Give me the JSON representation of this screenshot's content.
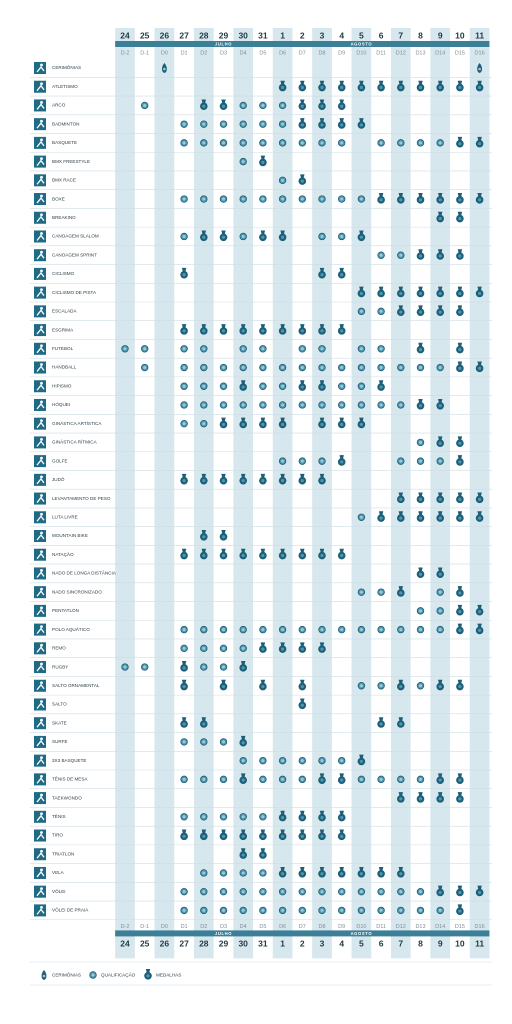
{
  "header": {
    "dates": [
      "24",
      "25",
      "26",
      "27",
      "28",
      "29",
      "30",
      "31",
      "1",
      "2",
      "3",
      "4",
      "5",
      "6",
      "7",
      "8",
      "9",
      "10",
      "11"
    ],
    "codes": [
      "D-2",
      "D-1",
      "D0",
      "D1",
      "D2",
      "D3",
      "D4",
      "D5",
      "D6",
      "D7",
      "D8",
      "D9",
      "D10",
      "D11",
      "D12",
      "D13",
      "D14",
      "D15",
      "D16"
    ],
    "months": [
      "JULHO",
      "AGOSTO"
    ]
  },
  "sports": [
    {
      "name": "CERIMÔNIAS",
      "cells": [
        null,
        null,
        "C",
        null,
        null,
        null,
        null,
        null,
        null,
        null,
        null,
        null,
        null,
        null,
        null,
        null,
        null,
        null,
        "C"
      ]
    },
    {
      "name": "ATLETISMO",
      "cells": [
        null,
        null,
        null,
        null,
        null,
        null,
        null,
        null,
        "M",
        "M",
        "M",
        "M",
        "M",
        "M",
        "M",
        "M",
        "M",
        "M",
        "M"
      ]
    },
    {
      "name": "ARCO",
      "cells": [
        null,
        "Q",
        null,
        null,
        "M",
        "M",
        "Q",
        "Q",
        "Q",
        "M",
        "M",
        "M",
        null,
        null,
        null,
        null,
        null,
        null,
        null
      ]
    },
    {
      "name": "BADMINTON",
      "cells": [
        null,
        null,
        null,
        "Q",
        "Q",
        "Q",
        "Q",
        "Q",
        "Q",
        "M",
        "M",
        "M",
        "M",
        null,
        null,
        null,
        null,
        null,
        null
      ]
    },
    {
      "name": "BASQUETE",
      "cells": [
        null,
        null,
        null,
        "Q",
        "Q",
        "Q",
        "Q",
        "Q",
        "Q",
        "Q",
        "Q",
        "Q",
        null,
        "Q",
        "Q",
        "Q",
        "Q",
        "M",
        "M"
      ]
    },
    {
      "name": "BMX FREESTYLE",
      "cells": [
        null,
        null,
        null,
        null,
        null,
        null,
        "Q",
        "M",
        null,
        null,
        null,
        null,
        null,
        null,
        null,
        null,
        null,
        null,
        null
      ]
    },
    {
      "name": "BMX RACE",
      "cells": [
        null,
        null,
        null,
        null,
        null,
        null,
        null,
        null,
        "Q",
        "M",
        null,
        null,
        null,
        null,
        null,
        null,
        null,
        null,
        null
      ]
    },
    {
      "name": "BOXE",
      "cells": [
        null,
        null,
        null,
        "Q",
        "Q",
        "Q",
        "Q",
        "Q",
        "Q",
        "Q",
        "Q",
        "Q",
        "Q",
        "M",
        "M",
        "M",
        "M",
        "M",
        "M"
      ]
    },
    {
      "name": "BREAKING",
      "cells": [
        null,
        null,
        null,
        null,
        null,
        null,
        null,
        null,
        null,
        null,
        null,
        null,
        null,
        null,
        null,
        null,
        "M",
        "M",
        null
      ]
    },
    {
      "name": "CANOAGEM SLALOM",
      "cells": [
        null,
        null,
        null,
        "Q",
        "M",
        "M",
        "Q",
        "M",
        "M",
        null,
        "Q",
        "Q",
        "M",
        null,
        null,
        null,
        null,
        null,
        null
      ]
    },
    {
      "name": "CANOAGEM SPRINT",
      "cells": [
        null,
        null,
        null,
        null,
        null,
        null,
        null,
        null,
        null,
        null,
        null,
        null,
        null,
        "Q",
        "Q",
        "M",
        "M",
        "M",
        null
      ]
    },
    {
      "name": "CICLISMO",
      "cells": [
        null,
        null,
        null,
        "M",
        null,
        null,
        null,
        null,
        null,
        null,
        "M",
        "M",
        null,
        null,
        null,
        null,
        null,
        null,
        null
      ]
    },
    {
      "name": "CICLISMO DE PISTA",
      "cells": [
        null,
        null,
        null,
        null,
        null,
        null,
        null,
        null,
        null,
        null,
        null,
        null,
        "M",
        "M",
        "M",
        "M",
        "M",
        "M",
        "M"
      ]
    },
    {
      "name": "ESCALADA",
      "cells": [
        null,
        null,
        null,
        null,
        null,
        null,
        null,
        null,
        null,
        null,
        null,
        null,
        "Q",
        "Q",
        "M",
        "M",
        "M",
        "M",
        null
      ]
    },
    {
      "name": "ESGRIMA",
      "cells": [
        null,
        null,
        null,
        "M",
        "M",
        "M",
        "M",
        "M",
        "M",
        "M",
        "M",
        "M",
        null,
        null,
        null,
        null,
        null,
        null,
        null
      ]
    },
    {
      "name": "FUTEBOL",
      "cells": [
        "Q",
        "Q",
        null,
        "Q",
        "Q",
        null,
        "Q",
        "Q",
        null,
        "Q",
        "Q",
        null,
        "Q",
        "Q",
        null,
        "M",
        null,
        "M",
        null
      ]
    },
    {
      "name": "HANDBALL",
      "cells": [
        null,
        "Q",
        null,
        "Q",
        "Q",
        "Q",
        "Q",
        "Q",
        "Q",
        "Q",
        "Q",
        "Q",
        "Q",
        "Q",
        "Q",
        "Q",
        "Q",
        "M",
        "M"
      ]
    },
    {
      "name": "HIPISMO",
      "cells": [
        null,
        null,
        null,
        "Q",
        "Q",
        "Q",
        "M",
        "Q",
        "Q",
        "M",
        "M",
        "Q",
        "Q",
        "M",
        null,
        null,
        null,
        null,
        null
      ]
    },
    {
      "name": "HÓQUEI",
      "cells": [
        null,
        null,
        null,
        "Q",
        "Q",
        "Q",
        "Q",
        "Q",
        "Q",
        "Q",
        "Q",
        "Q",
        "Q",
        "Q",
        "Q",
        "M",
        "M",
        null,
        null
      ]
    },
    {
      "name": "GINÁSTICA ARTÍSTICA",
      "cells": [
        null,
        null,
        null,
        "Q",
        "Q",
        "M",
        "M",
        "M",
        "M",
        null,
        "M",
        "M",
        "M",
        null,
        null,
        null,
        null,
        null,
        null
      ]
    },
    {
      "name": "GINÁSTICA RÍTMICA",
      "cells": [
        null,
        null,
        null,
        null,
        null,
        null,
        null,
        null,
        null,
        null,
        null,
        null,
        null,
        null,
        null,
        "Q",
        "M",
        "M",
        null
      ]
    },
    {
      "name": "GOLFE",
      "cells": [
        null,
        null,
        null,
        null,
        null,
        null,
        null,
        null,
        "Q",
        "Q",
        "Q",
        "M",
        null,
        null,
        "Q",
        "Q",
        "Q",
        "M",
        null
      ]
    },
    {
      "name": "JUDÔ",
      "cells": [
        null,
        null,
        null,
        "M",
        "M",
        "M",
        "M",
        "M",
        "M",
        "M",
        "M",
        null,
        null,
        null,
        null,
        null,
        null,
        null,
        null
      ]
    },
    {
      "name": "LEVANTAMENTO DE PESO",
      "cells": [
        null,
        null,
        null,
        null,
        null,
        null,
        null,
        null,
        null,
        null,
        null,
        null,
        null,
        null,
        "M",
        "M",
        "M",
        "M",
        "M"
      ]
    },
    {
      "name": "LUTA LIVRE",
      "cells": [
        null,
        null,
        null,
        null,
        null,
        null,
        null,
        null,
        null,
        null,
        null,
        null,
        "Q",
        "M",
        "M",
        "M",
        "M",
        "M",
        "M"
      ]
    },
    {
      "name": "MOUNTAIN BIKE",
      "cells": [
        null,
        null,
        null,
        null,
        "M",
        "M",
        null,
        null,
        null,
        null,
        null,
        null,
        null,
        null,
        null,
        null,
        null,
        null,
        null
      ]
    },
    {
      "name": "NATAÇÃO",
      "cells": [
        null,
        null,
        null,
        "M",
        "M",
        "M",
        "M",
        "M",
        "M",
        "M",
        "M",
        "M",
        null,
        null,
        null,
        null,
        null,
        null,
        null
      ]
    },
    {
      "name": "NADO DE LONGA DISTÂNCIA",
      "cells": [
        null,
        null,
        null,
        null,
        null,
        null,
        null,
        null,
        null,
        null,
        null,
        null,
        null,
        null,
        null,
        "M",
        "M",
        null,
        null
      ]
    },
    {
      "name": "NADO SINCRONIZADO",
      "cells": [
        null,
        null,
        null,
        null,
        null,
        null,
        null,
        null,
        null,
        null,
        null,
        null,
        "Q",
        "Q",
        "M",
        null,
        "Q",
        "M",
        null
      ]
    },
    {
      "name": "PENTATLON",
      "cells": [
        null,
        null,
        null,
        null,
        null,
        null,
        null,
        null,
        null,
        null,
        null,
        null,
        null,
        null,
        null,
        "Q",
        "Q",
        "M",
        "M"
      ]
    },
    {
      "name": "POLO AQUÁTICO",
      "cells": [
        null,
        null,
        null,
        "Q",
        "Q",
        "Q",
        "Q",
        "Q",
        "Q",
        "Q",
        "Q",
        "Q",
        "Q",
        "Q",
        "Q",
        "Q",
        "Q",
        "M",
        "M"
      ]
    },
    {
      "name": "REMO",
      "cells": [
        null,
        null,
        null,
        "Q",
        "Q",
        "Q",
        "Q",
        "M",
        "M",
        "M",
        "M",
        null,
        null,
        null,
        null,
        null,
        null,
        null,
        null
      ]
    },
    {
      "name": "RUGBY",
      "cells": [
        "Q",
        "Q",
        null,
        "M",
        "Q",
        "Q",
        "M",
        null,
        null,
        null,
        null,
        null,
        null,
        null,
        null,
        null,
        null,
        null,
        null
      ]
    },
    {
      "name": "SALTO ORNAMENTAL",
      "cells": [
        null,
        null,
        null,
        "M",
        null,
        "M",
        null,
        "M",
        null,
        "M",
        null,
        null,
        "Q",
        "Q",
        "M",
        "Q",
        "M",
        "M",
        null
      ]
    },
    {
      "name": "SALTO",
      "cells": [
        null,
        null,
        null,
        null,
        null,
        null,
        null,
        null,
        null,
        "M",
        null,
        null,
        null,
        null,
        null,
        null,
        null,
        null,
        null
      ]
    },
    {
      "name": "SKATE",
      "cells": [
        null,
        null,
        null,
        "M",
        "M",
        null,
        null,
        null,
        null,
        null,
        null,
        null,
        null,
        "M",
        "M",
        null,
        null,
        null,
        null
      ]
    },
    {
      "name": "SURFE",
      "cells": [
        null,
        null,
        null,
        "Q",
        "Q",
        "Q",
        "M",
        null,
        null,
        null,
        null,
        null,
        null,
        null,
        null,
        null,
        null,
        null,
        null
      ]
    },
    {
      "name": "3X3 BASQUETE",
      "cells": [
        null,
        null,
        null,
        null,
        null,
        null,
        "Q",
        "Q",
        "Q",
        "Q",
        "Q",
        "Q",
        "M",
        null,
        null,
        null,
        null,
        null,
        null
      ]
    },
    {
      "name": "TÊNIS DE MESA",
      "cells": [
        null,
        null,
        null,
        "Q",
        "Q",
        "Q",
        "M",
        "Q",
        "Q",
        "Q",
        "M",
        "M",
        "Q",
        "Q",
        "Q",
        "Q",
        "M",
        "M",
        null
      ]
    },
    {
      "name": "TAEKWONDO",
      "cells": [
        null,
        null,
        null,
        null,
        null,
        null,
        null,
        null,
        null,
        null,
        null,
        null,
        null,
        null,
        "M",
        "M",
        "M",
        "M",
        null
      ]
    },
    {
      "name": "TÊNIS",
      "cells": [
        null,
        null,
        null,
        "Q",
        "Q",
        "Q",
        "Q",
        "Q",
        "M",
        "M",
        "M",
        "M",
        null,
        null,
        null,
        null,
        null,
        null,
        null
      ]
    },
    {
      "name": "TIRO",
      "cells": [
        null,
        null,
        null,
        "M",
        "M",
        "M",
        "M",
        "M",
        "M",
        "M",
        "M",
        "M",
        null,
        null,
        null,
        null,
        null,
        null,
        null
      ]
    },
    {
      "name": "TRIATLON",
      "cells": [
        null,
        null,
        null,
        null,
        null,
        null,
        "M",
        "M",
        null,
        null,
        null,
        null,
        null,
        null,
        null,
        null,
        null,
        null,
        null
      ]
    },
    {
      "name": "VELA",
      "cells": [
        null,
        null,
        null,
        null,
        "Q",
        "Q",
        "Q",
        "Q",
        "M",
        "M",
        "M",
        "M",
        "M",
        "M",
        "M",
        null,
        null,
        null,
        null
      ]
    },
    {
      "name": "VÔLEI",
      "cells": [
        null,
        null,
        null,
        "Q",
        "Q",
        "Q",
        "Q",
        "Q",
        "Q",
        "Q",
        "Q",
        "Q",
        "Q",
        "Q",
        "Q",
        "Q",
        "M",
        "M",
        "M"
      ]
    },
    {
      "name": "VÔLEI DE PRAIA",
      "cells": [
        null,
        null,
        null,
        "Q",
        "Q",
        "Q",
        "Q",
        "Q",
        "Q",
        "Q",
        "Q",
        "Q",
        "Q",
        "Q",
        "Q",
        "Q",
        "Q",
        "M",
        null
      ]
    }
  ],
  "legend": {
    "ceremony": "CERIMÔNIAS",
    "qualification": "QUALIFICAÇÃO",
    "medal": "MEDALHAS"
  }
}
